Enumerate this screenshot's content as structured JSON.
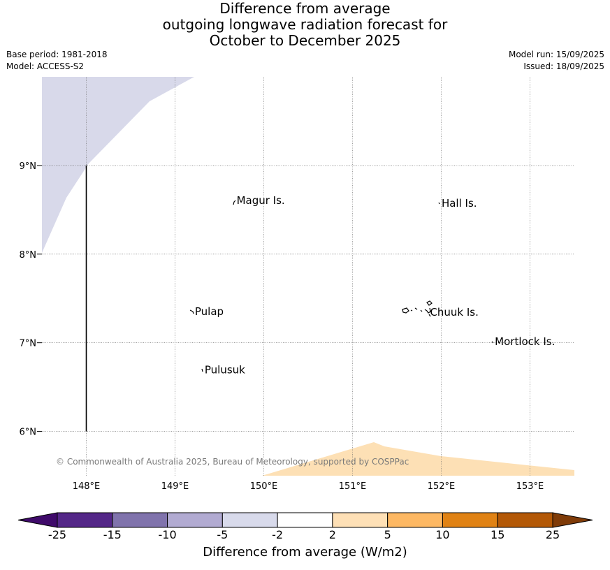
{
  "title": {
    "line1": "Difference from average",
    "line2": "outgoing longwave radiation forecast for",
    "line3": "October to December 2025"
  },
  "meta": {
    "base_period": "Base period: 1981-2018",
    "model": "Model: ACCESS-S2",
    "model_run": "Model run: 15/09/2025",
    "issued": "Issued: 18/09/2025"
  },
  "map": {
    "lon_range": [
      147.5,
      153.5
    ],
    "lat_range": [
      5.5,
      10.0
    ],
    "lon_ticks": [
      "148°E",
      "149°E",
      "150°E",
      "151°E",
      "152°E",
      "153°E"
    ],
    "lat_ticks": [
      "9°N",
      "8°N",
      "7°N",
      "6°N"
    ],
    "grid": true,
    "copyright": "© Commonwealth of Australia 2025, Bureau of Meteorology, supported by COSPPac",
    "places": [
      {
        "name": "Magur Is.",
        "lon": 149.67,
        "lat": 8.58
      },
      {
        "name": "Hall Is.",
        "lon": 151.98,
        "lat": 8.55
      },
      {
        "name": "Pulap",
        "lon": 149.2,
        "lat": 7.33
      },
      {
        "name": "Chuuk Is.",
        "lon": 151.85,
        "lat": 7.32
      },
      {
        "name": "Mortlock Is.",
        "lon": 152.58,
        "lat": 6.99
      },
      {
        "name": "Pulusuk",
        "lon": 149.31,
        "lat": 6.67
      }
    ],
    "boundary_line": {
      "lon": 148.0,
      "lat_from": 6.0,
      "lat_to": 9.0
    },
    "regions": [
      {
        "category": "-5 to -2",
        "color": "#d8d9ea"
      },
      {
        "category": "2 to 5",
        "color": "#fde0b5"
      }
    ]
  },
  "colorbar": {
    "title": "Difference from average (W/m2)",
    "ticks": [
      "-25",
      "-15",
      "-10",
      "-5",
      "-2",
      "2",
      "5",
      "10",
      "15",
      "25"
    ],
    "colors": [
      "#3f0a6a",
      "#542788",
      "#8073ac",
      "#b2abd2",
      "#d8daeb",
      "#ffffff",
      "#fee0b6",
      "#fdb863",
      "#e08214",
      "#b35806",
      "#7f3b08"
    ]
  }
}
